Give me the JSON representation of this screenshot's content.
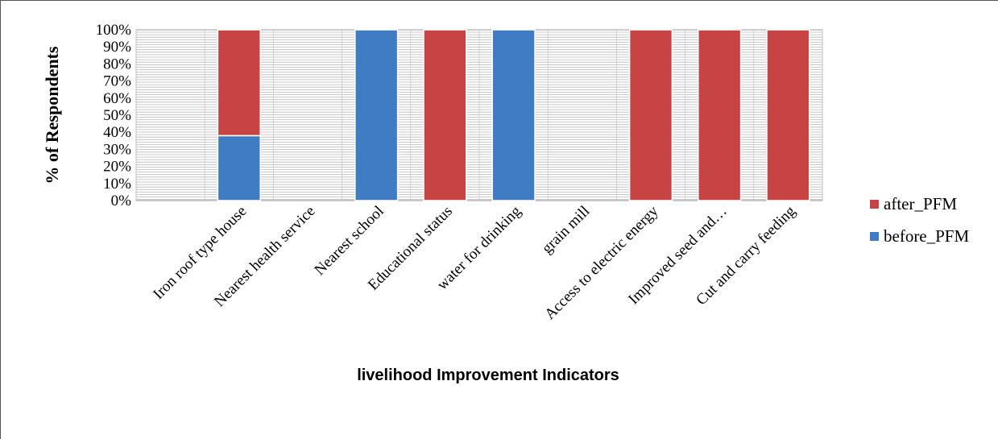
{
  "chart_data": {
    "type": "bar",
    "stacked": true,
    "categories": [
      "",
      "Iron roof type house",
      "Nearest health service",
      "Nearest school",
      "Educational status",
      "water for drinking",
      "grain mill",
      "Access to electric energy",
      "Improved seed and…",
      "Cut and carry feeding"
    ],
    "series": [
      {
        "name": "before_PFM",
        "color": "#3F7CC4",
        "values": [
          0,
          38,
          0,
          100,
          0,
          100,
          0,
          0,
          0,
          0
        ]
      },
      {
        "name": "after_PFM",
        "color": "#C84444",
        "values": [
          0,
          62,
          0,
          0,
          100,
          0,
          0,
          100,
          100,
          100
        ]
      }
    ],
    "yticks": [
      "0%",
      "10%",
      "20%",
      "30%",
      "40%",
      "50%",
      "60%",
      "70%",
      "80%",
      "90%",
      "100%"
    ],
    "ylim": [
      0,
      100
    ],
    "ylabel": "% of Respondents",
    "xlabel": "livelihood Improvement Indicators",
    "grid": "horizontal-hatch",
    "legend": {
      "placement": "right",
      "order": [
        "after_PFM",
        "before_PFM"
      ]
    }
  }
}
